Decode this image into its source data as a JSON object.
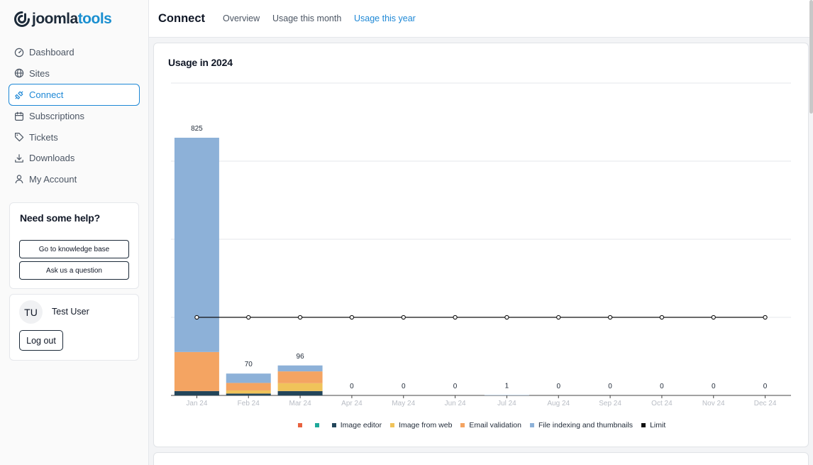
{
  "brand": {
    "part1": "joomla",
    "part2": "tools",
    "dark": "#1c2a39",
    "accent": "#1a8fd0"
  },
  "sidebar": {
    "items": [
      {
        "label": "Dashboard",
        "icon": "dashboard-icon"
      },
      {
        "label": "Sites",
        "icon": "globe-icon"
      },
      {
        "label": "Connect",
        "icon": "plug-icon",
        "active": true
      },
      {
        "label": "Subscriptions",
        "icon": "calendar-icon"
      },
      {
        "label": "Tickets",
        "icon": "tag-icon"
      },
      {
        "label": "Downloads",
        "icon": "download-icon"
      },
      {
        "label": "My Account",
        "icon": "user-icon"
      }
    ],
    "help": {
      "title": "Need some help?",
      "kb_label": "Go to knowledge base",
      "ask_label": "Ask us a question"
    },
    "user": {
      "initials": "TU",
      "name": "Test User",
      "logout_label": "Log out"
    }
  },
  "header": {
    "title": "Connect",
    "tabs": [
      {
        "label": "Overview"
      },
      {
        "label": "Usage this month"
      },
      {
        "label": "Usage this year",
        "active": true
      }
    ]
  },
  "card": {
    "title": "Usage in 2024"
  },
  "chart_data": {
    "type": "bar",
    "stacked": true,
    "categories": [
      "Jan 24",
      "Feb 24",
      "Mar 24",
      "Apr 24",
      "May 24",
      "Jun 24",
      "Jul 24",
      "Aug 24",
      "Sep 24",
      "Oct 24",
      "Nov 24",
      "Dec 24"
    ],
    "totals": [
      825,
      70,
      96,
      0,
      0,
      0,
      1,
      0,
      0,
      0,
      0,
      0
    ],
    "ylim": [
      0,
      1000
    ],
    "grid": true,
    "legend_position": "bottom",
    "series": [
      {
        "name": "",
        "color": "#e8623f",
        "values": [
          0,
          0,
          0,
          0,
          0,
          0,
          0,
          0,
          0,
          0,
          0,
          0
        ]
      },
      {
        "name": "",
        "color": "#1ea89a",
        "values": [
          0,
          0,
          0,
          0,
          0,
          0,
          0,
          0,
          0,
          0,
          0,
          0
        ]
      },
      {
        "name": "Image editor",
        "color": "#23455a",
        "values": [
          14,
          6,
          14,
          0,
          0,
          0,
          0,
          0,
          0,
          0,
          0,
          0
        ]
      },
      {
        "name": "Image from web",
        "color": "#f0c35a",
        "values": [
          0,
          10,
          25,
          0,
          0,
          0,
          0,
          0,
          0,
          0,
          0,
          0
        ]
      },
      {
        "name": "Email validation",
        "color": "#f4a462",
        "values": [
          125,
          24,
          38,
          0,
          0,
          0,
          0,
          0,
          0,
          0,
          0,
          0
        ]
      },
      {
        "name": "File indexing and thumbnails",
        "color": "#8db1d8",
        "values": [
          686,
          30,
          19,
          0,
          0,
          0,
          1,
          0,
          0,
          0,
          0,
          0
        ]
      }
    ],
    "limit": {
      "name": "Limit",
      "color": "#111111",
      "values": [
        250,
        250,
        250,
        250,
        250,
        250,
        250,
        250,
        250,
        250,
        250,
        250
      ]
    }
  }
}
